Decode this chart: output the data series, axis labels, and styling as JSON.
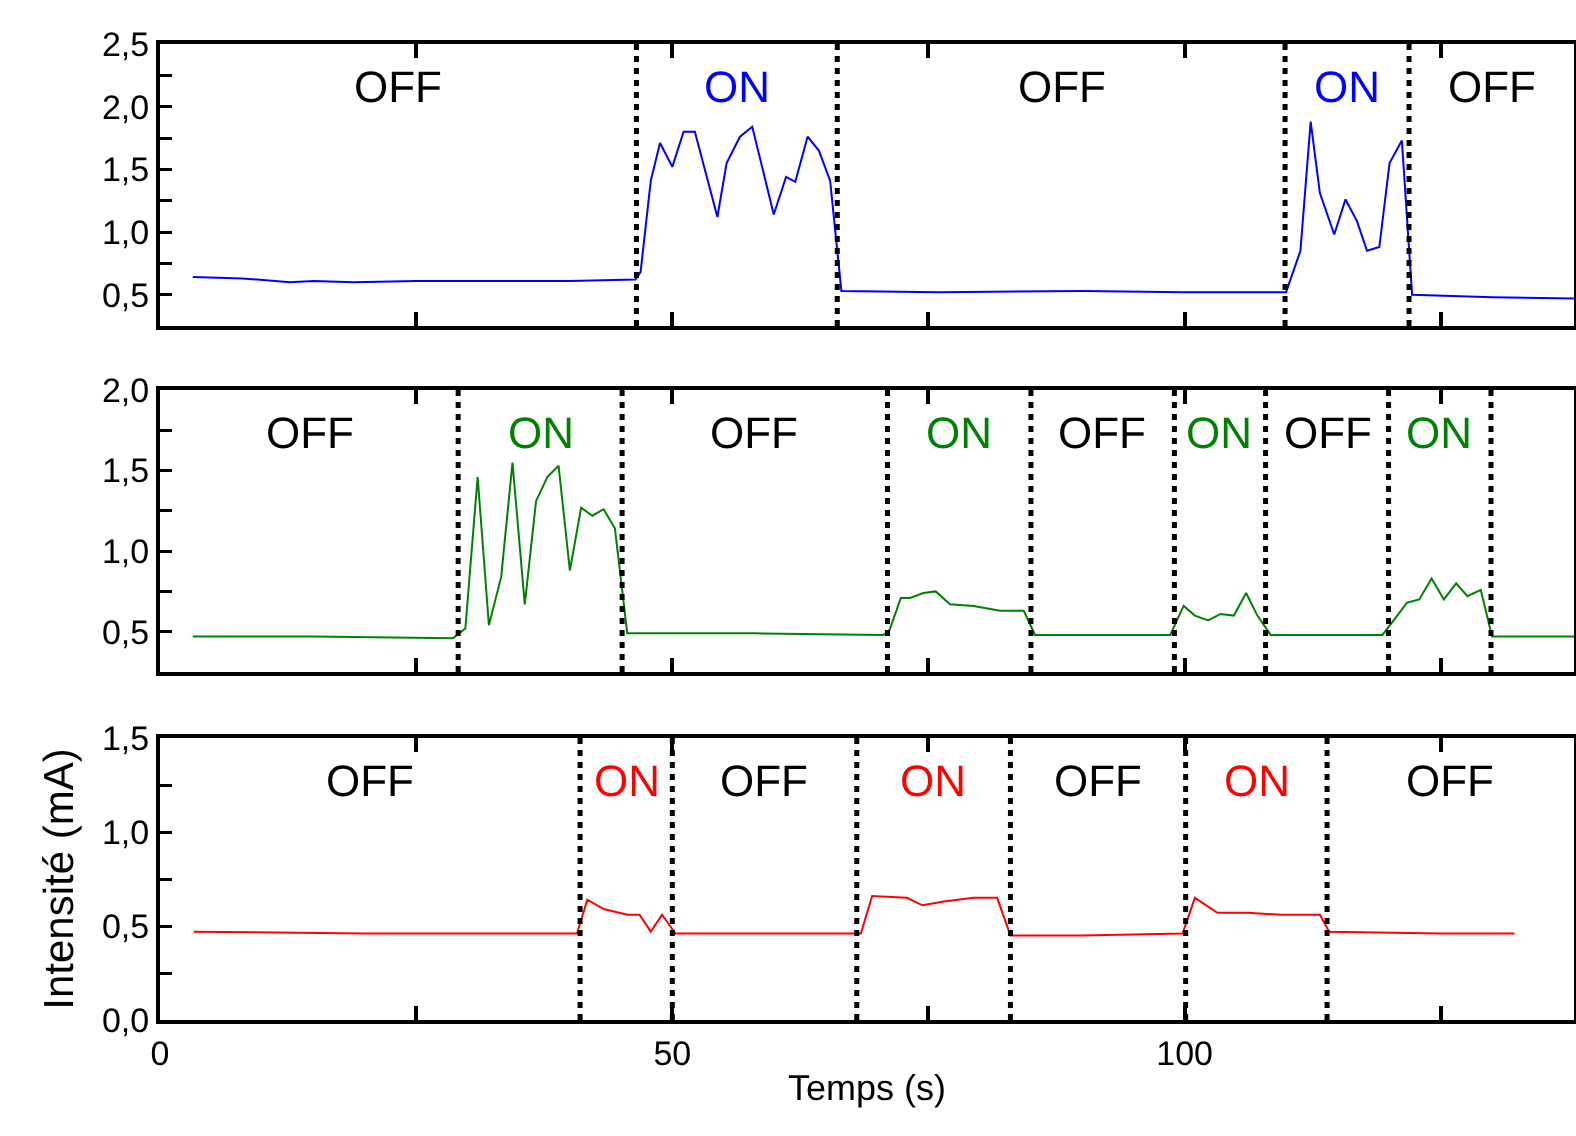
{
  "chart_data": [
    {
      "type": "line",
      "xlim": [
        0,
        138
      ],
      "ylim": [
        0.25,
        2.5
      ],
      "xticks": [
        0,
        {
          "value": 25,
          "label": null
        },
        50,
        {
          "value": 75,
          "label": null
        },
        100,
        {
          "value": 125,
          "label": null
        }
      ],
      "yticks": [
        {
          "value": 0.5,
          "label": "0,5"
        },
        {
          "value": 0.75,
          "label": null
        },
        {
          "value": 1.0,
          "label": "1,0"
        },
        {
          "value": 1.25,
          "label": null
        },
        {
          "value": 1.5,
          "label": "1,5"
        },
        {
          "value": 1.75,
          "label": null
        },
        {
          "value": 2.0,
          "label": "2,0"
        },
        {
          "value": 2.25,
          "label": null
        },
        {
          "value": 2.5,
          "label": "2,5"
        }
      ],
      "tick_labels": "y",
      "grid": false,
      "marker": "none",
      "line_style": "solid",
      "x": [
        3.2,
        8,
        12.7,
        15,
        18.9,
        25,
        30,
        35,
        40,
        46.4,
        46.9,
        47.9,
        48.8,
        50,
        51.1,
        52.2,
        54.4,
        55.3,
        56.6,
        57.8,
        59.9,
        61.1,
        62,
        63.2,
        64.3,
        65.4,
        66.5,
        76,
        90,
        100,
        109.9,
        111.3,
        112.3,
        113.2,
        114.6,
        115.7,
        116.8,
        117.8,
        119,
        120,
        121.2,
        122.2,
        130,
        138
      ],
      "series": [
        {
          "color": "#0000ff",
          "values": [
            0.64,
            0.63,
            0.6,
            0.61,
            0.6,
            0.61,
            0.61,
            0.61,
            0.61,
            0.62,
            0.68,
            1.41,
            1.71,
            1.52,
            1.8,
            1.8,
            1.12,
            1.55,
            1.76,
            1.84,
            1.14,
            1.44,
            1.4,
            1.76,
            1.65,
            1.41,
            0.53,
            0.52,
            0.53,
            0.52,
            0.52,
            0.85,
            1.88,
            1.31,
            0.98,
            1.26,
            1.09,
            0.85,
            0.88,
            1.55,
            1.73,
            0.5,
            0.48,
            0.47
          ]
        }
      ],
      "ref_lines": [
        {
          "axis": "x",
          "value": 46.5,
          "color": "#000000",
          "line_style": "dotted"
        },
        {
          "axis": "x",
          "value": 66.1,
          "color": "#000000",
          "line_style": "dotted"
        },
        {
          "axis": "x",
          "value": 109.8,
          "color": "#000000",
          "line_style": "dotted"
        },
        {
          "axis": "x",
          "value": 121.9,
          "color": "#000000",
          "line_style": "dotted"
        }
      ],
      "annotations": [
        "OFF",
        "ON",
        "OFF",
        "ON",
        "OFF"
      ]
    },
    {
      "type": "line",
      "xlim": [
        0,
        138
      ],
      "ylim": [
        0.25,
        2.0
      ],
      "xticks": [
        0,
        {
          "value": 25,
          "label": null
        },
        50,
        {
          "value": 75,
          "label": null
        },
        100,
        {
          "value": 125,
          "label": null
        }
      ],
      "yticks": [
        {
          "value": 0.5,
          "label": "0,5"
        },
        {
          "value": 0.75,
          "label": null
        },
        {
          "value": 1.0,
          "label": "1,0"
        },
        {
          "value": 1.25,
          "label": null
        },
        {
          "value": 1.5,
          "label": "1,5"
        },
        {
          "value": 1.75,
          "label": null
        },
        {
          "value": 2.0,
          "label": "2,0"
        }
      ],
      "tick_labels": "y",
      "grid": false,
      "marker": "none",
      "line_style": "solid",
      "x": [
        3.2,
        15,
        28.6,
        29.8,
        31,
        32.1,
        33.3,
        34.4,
        35.6,
        36.7,
        37.8,
        38.9,
        40,
        41.1,
        42.2,
        43.3,
        44.4,
        45.6,
        58,
        70.6,
        71.2,
        72.3,
        73.2,
        74.5,
        75.7,
        77.1,
        79.4,
        82,
        84.3,
        85.4,
        92,
        98.6,
        99.9,
        101,
        102.3,
        103.5,
        104.8,
        106,
        107.1,
        108.4,
        114,
        119.3,
        120.4,
        121.7,
        122.9,
        124.1,
        125.3,
        126.5,
        127.6,
        128.9,
        130,
        138
      ],
      "series": [
        {
          "color": "#008000",
          "values": [
            0.47,
            0.47,
            0.46,
            0.52,
            1.46,
            0.54,
            0.84,
            1.55,
            0.67,
            1.31,
            1.46,
            1.53,
            0.88,
            1.27,
            1.22,
            1.26,
            1.14,
            0.49,
            0.49,
            0.48,
            0.51,
            0.71,
            0.71,
            0.74,
            0.75,
            0.67,
            0.66,
            0.63,
            0.63,
            0.48,
            0.48,
            0.48,
            0.66,
            0.6,
            0.57,
            0.61,
            0.6,
            0.74,
            0.6,
            0.48,
            0.48,
            0.48,
            0.57,
            0.68,
            0.7,
            0.83,
            0.7,
            0.8,
            0.72,
            0.76,
            0.47,
            0.47
          ]
        }
      ],
      "ref_lines": [
        {
          "axis": "x",
          "value": 29.1,
          "color": "#000000",
          "line_style": "dotted"
        },
        {
          "axis": "x",
          "value": 45.1,
          "color": "#000000",
          "line_style": "dotted"
        },
        {
          "axis": "x",
          "value": 71.0,
          "color": "#000000",
          "line_style": "dotted"
        },
        {
          "axis": "x",
          "value": 85.0,
          "color": "#000000",
          "line_style": "dotted"
        },
        {
          "axis": "x",
          "value": 99.0,
          "color": "#000000",
          "line_style": "dotted"
        },
        {
          "axis": "x",
          "value": 107.9,
          "color": "#000000",
          "line_style": "dotted"
        },
        {
          "axis": "x",
          "value": 119.9,
          "color": "#000000",
          "line_style": "dotted"
        },
        {
          "axis": "x",
          "value": 129.9,
          "color": "#000000",
          "line_style": "dotted"
        }
      ],
      "annotations": [
        "OFF",
        "ON",
        "OFF",
        "ON",
        "OFF",
        "ON",
        "OFF",
        "ON"
      ]
    },
    {
      "type": "line",
      "xlabel": "Temps (s)",
      "ylabel": "Intensité (mA)",
      "xlim": [
        0,
        138
      ],
      "ylim": [
        0,
        1.5
      ],
      "xticks": [
        0,
        {
          "value": 25,
          "label": null
        },
        50,
        {
          "value": 75,
          "label": null
        },
        100,
        {
          "value": 125,
          "label": null
        }
      ],
      "yticks": [
        {
          "value": 0,
          "label": "0,0"
        },
        {
          "value": 0.25,
          "label": null
        },
        {
          "value": 0.5,
          "label": "0,5"
        },
        {
          "value": 0.75,
          "label": null
        },
        {
          "value": 1.0,
          "label": "1,0"
        },
        {
          "value": 1.25,
          "label": null
        },
        {
          "value": 1.5,
          "label": "1,5"
        }
      ],
      "grid": false,
      "marker": "none",
      "line_style": "solid",
      "x": [
        3.3,
        20,
        40.7,
        41.7,
        43.3,
        45.6,
        46.8,
        47.9,
        49,
        50.3,
        60,
        68.4,
        69.5,
        72.9,
        74.4,
        76.5,
        79.4,
        81.7,
        83,
        90,
        99.8,
        101,
        103.2,
        106.1,
        109.4,
        113.2,
        114.1,
        125,
        132.2
      ],
      "series": [
        {
          "color": "#ff0000",
          "values": [
            0.47,
            0.46,
            0.46,
            0.64,
            0.59,
            0.56,
            0.56,
            0.47,
            0.56,
            0.46,
            0.46,
            0.46,
            0.66,
            0.65,
            0.61,
            0.63,
            0.65,
            0.65,
            0.45,
            0.45,
            0.46,
            0.65,
            0.57,
            0.57,
            0.56,
            0.56,
            0.47,
            0.46,
            0.46
          ]
        }
      ],
      "ref_lines": [
        {
          "axis": "x",
          "value": 41.0,
          "color": "#000000",
          "line_style": "dotted"
        },
        {
          "axis": "x",
          "value": 50.0,
          "color": "#000000",
          "line_style": "dotted"
        },
        {
          "axis": "x",
          "value": 68.0,
          "color": "#000000",
          "line_style": "dotted"
        },
        {
          "axis": "x",
          "value": 83.0,
          "color": "#000000",
          "line_style": "dotted"
        },
        {
          "axis": "x",
          "value": 100.1,
          "color": "#000000",
          "line_style": "dotted"
        },
        {
          "axis": "x",
          "value": 113.9,
          "color": "#000000",
          "line_style": "dotted"
        }
      ],
      "annotations": [
        "OFF",
        "ON",
        "OFF",
        "ON",
        "OFF",
        "ON",
        "OFF"
      ]
    }
  ]
}
